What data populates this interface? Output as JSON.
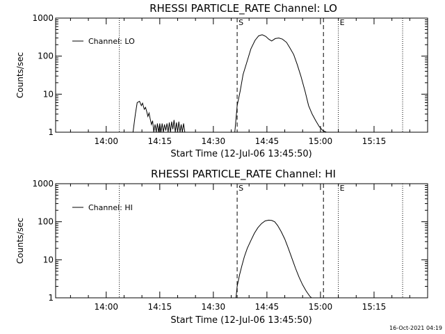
{
  "footer": {
    "timestamp": "16-Oct-2021 04:19"
  },
  "chart_data": [
    {
      "type": "line",
      "title": "RHESSI PARTICLE_RATE Channel: LO",
      "xlabel": "Start Time (12-Jul-06 13:45:50)",
      "ylabel": "Counts/sec",
      "yscale": "log",
      "xlim": [
        "13:45:50",
        "15:30:00"
      ],
      "ylim": [
        1,
        1000
      ],
      "x_ticks": [
        "14:00",
        "14:15",
        "14:30",
        "14:45",
        "15:00",
        "15:15"
      ],
      "y_ticks": [
        "1",
        "10",
        "100",
        "1000"
      ],
      "legend": {
        "label": "Channel: LO",
        "position": "top-left"
      },
      "markers": [
        {
          "label": "S",
          "time": "14:36:40",
          "style": "dashed"
        },
        {
          "label": "",
          "time": "15:00:50",
          "style": "dashed"
        },
        {
          "label": "E",
          "time": "15:05:00",
          "style": "dotted"
        },
        {
          "label": "",
          "time": "14:03:40",
          "style": "dotted"
        },
        {
          "label": "",
          "time": "15:23:00",
          "style": "dotted"
        }
      ],
      "series": [
        {
          "name": "Channel: LO",
          "x": [
            "14:07:30",
            "14:08:10",
            "14:08:40",
            "14:09:20",
            "14:09:50",
            "14:10:10",
            "14:10:40",
            "14:11:00",
            "14:11:20",
            "14:11:40",
            "14:12:00",
            "14:12:20",
            "14:12:40",
            "14:13:00",
            "14:13:20",
            "14:13:40",
            "14:14:00",
            "14:14:20",
            "14:14:40",
            "14:15:00",
            "14:15:20",
            "14:15:40",
            "14:16:00",
            "14:16:20",
            "14:16:40",
            "14:17:00",
            "14:17:20",
            "14:17:40",
            "14:18:00",
            "14:18:20",
            "14:18:40",
            "14:19:00",
            "14:19:20",
            "14:19:40",
            "14:20:00",
            "14:20:20",
            "14:20:40",
            "14:21:00",
            "14:21:20",
            "14:21:40",
            "14:22:00",
            "14:22:20",
            "14:36:00",
            "14:36:40",
            "14:37:30",
            "14:38:20",
            "14:39:30",
            "14:40:30",
            "14:41:40",
            "14:42:40",
            "14:43:40",
            "14:44:40",
            "14:45:30",
            "14:46:20",
            "14:47:20",
            "14:48:20",
            "14:49:20",
            "14:50:30",
            "14:51:30",
            "14:52:30",
            "14:53:30",
            "14:54:30",
            "14:55:40",
            "14:56:40",
            "14:57:40",
            "14:58:40",
            "14:59:40",
            "15:00:40",
            "15:01:40",
            "15:02:40"
          ],
          "y": [
            1,
            3,
            6,
            6.5,
            5,
            5.8,
            4,
            4.5,
            3.5,
            2.6,
            3.2,
            2.2,
            1.6,
            2.0,
            1,
            1.6,
            1,
            1.7,
            1,
            1.7,
            1,
            1.7,
            1,
            1.6,
            1.1,
            1.7,
            1,
            1.8,
            1,
            1.9,
            1.2,
            2.1,
            1,
            1.8,
            1,
            1.9,
            1,
            1.6,
            1,
            1.7,
            1,
            1,
            1,
            5,
            12,
            33,
            75,
            155,
            260,
            340,
            365,
            330,
            280,
            250,
            290,
            300,
            280,
            230,
            160,
            110,
            60,
            30,
            12,
            5,
            3,
            2,
            1.4,
            1.1,
            1,
            1
          ]
        }
      ]
    },
    {
      "type": "line",
      "title": "RHESSI PARTICLE_RATE Channel: HI",
      "xlabel": "Start Time (12-Jul-06 13:45:50)",
      "ylabel": "Counts/sec",
      "yscale": "log",
      "xlim": [
        "13:45:50",
        "15:30:00"
      ],
      "ylim": [
        1,
        1000
      ],
      "x_ticks": [
        "14:00",
        "14:15",
        "14:30",
        "14:45",
        "15:00",
        "15:15"
      ],
      "y_ticks": [
        "1",
        "10",
        "100",
        "1000"
      ],
      "legend": {
        "label": "Channel: HI",
        "position": "top-left"
      },
      "markers": [
        {
          "label": "S",
          "time": "14:36:40",
          "style": "dashed"
        },
        {
          "label": "",
          "time": "15:00:50",
          "style": "dashed"
        },
        {
          "label": "E",
          "time": "15:05:00",
          "style": "dotted"
        },
        {
          "label": "",
          "time": "14:03:40",
          "style": "dotted"
        },
        {
          "label": "",
          "time": "15:23:00",
          "style": "dotted"
        }
      ],
      "series": [
        {
          "name": "Channel: HI",
          "x": [
            "14:36:20",
            "14:36:40",
            "14:37:20",
            "14:38:00",
            "14:38:40",
            "14:39:30",
            "14:40:30",
            "14:41:30",
            "14:42:30",
            "14:43:30",
            "14:44:30",
            "14:45:30",
            "14:46:20",
            "14:47:10",
            "14:48:00",
            "14:49:00",
            "14:50:00",
            "14:51:00",
            "14:52:00",
            "14:53:00",
            "14:54:00",
            "14:55:00",
            "14:56:00",
            "14:57:00",
            "14:57:30"
          ],
          "y": [
            1,
            2,
            4,
            7,
            12,
            20,
            32,
            50,
            70,
            90,
            105,
            110,
            108,
            100,
            80,
            55,
            35,
            20,
            11,
            6,
            3.5,
            2.2,
            1.5,
            1.1,
            1
          ]
        }
      ]
    }
  ]
}
